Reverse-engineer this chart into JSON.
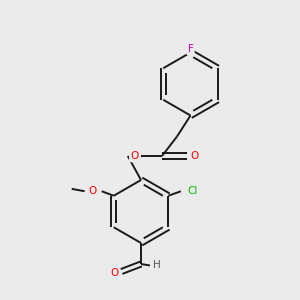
{
  "bg_color": "#ebebeb",
  "bond_color": "#1a1a1a",
  "atom_colors": {
    "O": "#ff0000",
    "Cl": "#00bb00",
    "F": "#cc00cc",
    "H": "#555555"
  },
  "lw": 1.4,
  "fontsize": 7.5
}
